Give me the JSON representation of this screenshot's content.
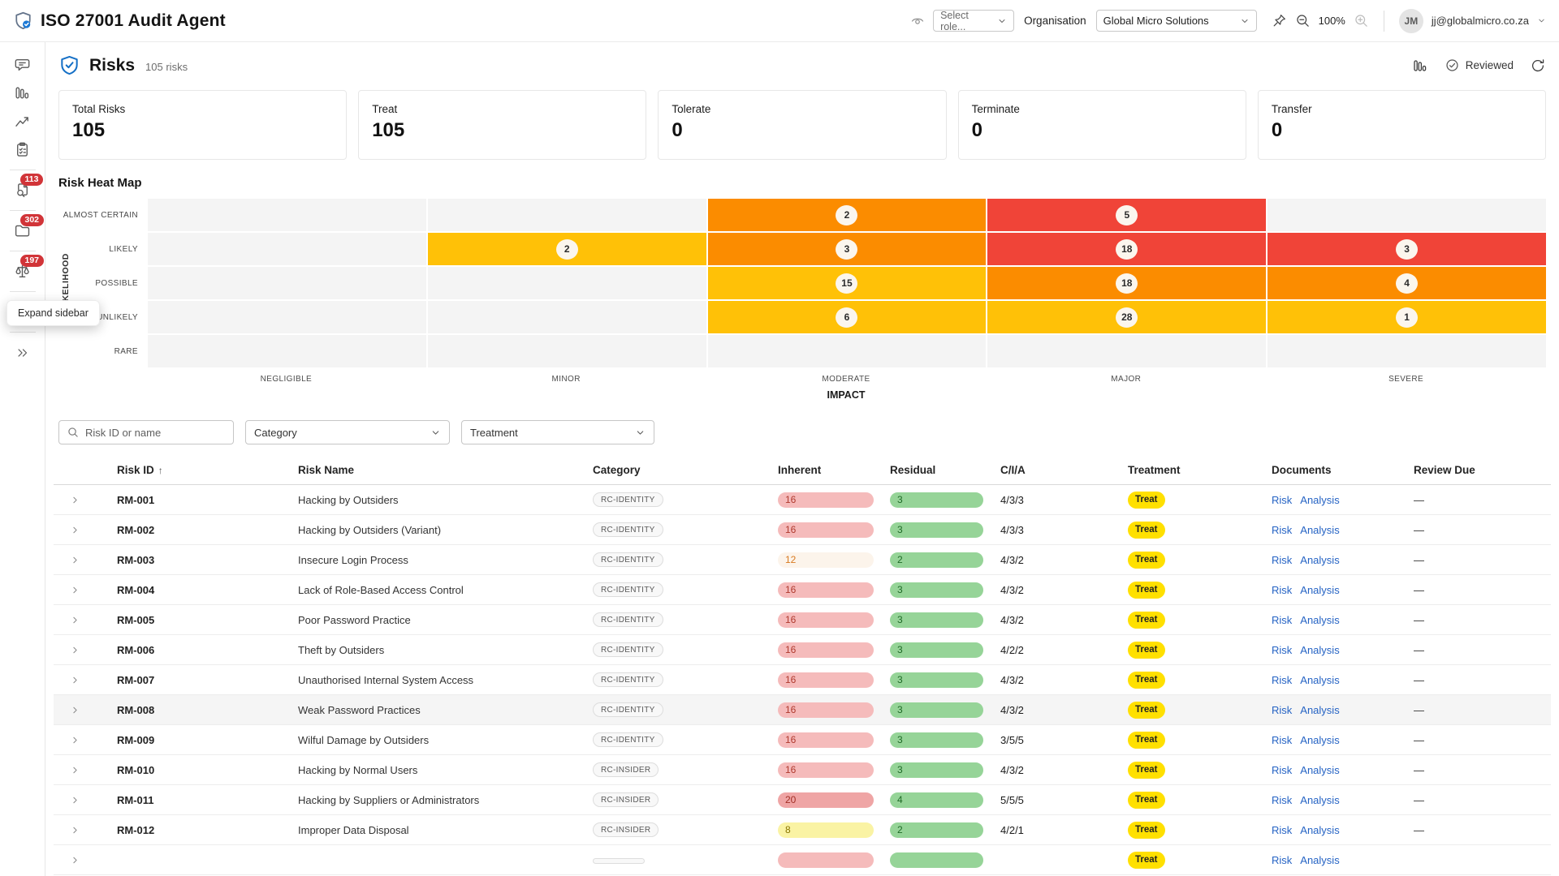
{
  "header": {
    "app_title": "ISO 27001 Audit Agent",
    "role_placeholder": "Select role...",
    "organisation_label": "Organisation",
    "organisation_value": "Global Micro Solutions",
    "zoom_level": "100%",
    "user_initials": "JM",
    "user_email": "jj@globalmicro.co.za"
  },
  "sidebar": {
    "tooltip": "Expand sidebar",
    "items": [
      {
        "name": "chat",
        "icon": "chat",
        "badge": null,
        "divider_after": false
      },
      {
        "name": "bar-chart",
        "icon": "bars",
        "badge": null,
        "divider_after": false
      },
      {
        "name": "trend",
        "icon": "trend",
        "badge": null,
        "divider_after": false
      },
      {
        "name": "checklist",
        "icon": "clipboard",
        "badge": null,
        "divider_after": true
      },
      {
        "name": "document-search",
        "icon": "docsearch",
        "badge": "113",
        "divider_after": true
      },
      {
        "name": "folder",
        "icon": "folder",
        "badge": "302",
        "divider_after": true
      },
      {
        "name": "compliance-scale",
        "icon": "scale",
        "badge": "197",
        "divider_after": true
      },
      {
        "name": "bank",
        "icon": "bank",
        "badge": null,
        "divider_after": true
      }
    ]
  },
  "page": {
    "title": "Risks",
    "subtitle": "105 risks",
    "reviewed_label": "Reviewed"
  },
  "stats": [
    {
      "label": "Total Risks",
      "value": "105"
    },
    {
      "label": "Treat",
      "value": "105"
    },
    {
      "label": "Tolerate",
      "value": "0"
    },
    {
      "label": "Terminate",
      "value": "0"
    },
    {
      "label": "Transfer",
      "value": "0"
    }
  ],
  "heatmap": {
    "title": "Risk Heat Map",
    "y_axis": "LIKELIHOOD",
    "x_axis": "IMPACT",
    "rows": [
      "ALMOST CERTAIN",
      "LIKELY",
      "POSSIBLE",
      "UNLIKELY",
      "RARE"
    ],
    "cols": [
      "NEGLIGIBLE",
      "MINOR",
      "MODERATE",
      "MAJOR",
      "SEVERE"
    ],
    "colors": {
      "amber": "#FFC107",
      "orange": "#FB8C00",
      "red": "#F04438",
      "empty": "#F4F4F4"
    },
    "cells": [
      {
        "row": 0,
        "col": 2,
        "value": "2",
        "color": "orange"
      },
      {
        "row": 0,
        "col": 3,
        "value": "5",
        "color": "red"
      },
      {
        "row": 1,
        "col": 1,
        "value": "2",
        "color": "amber"
      },
      {
        "row": 1,
        "col": 2,
        "value": "3",
        "color": "orange"
      },
      {
        "row": 1,
        "col": 3,
        "value": "18",
        "color": "red"
      },
      {
        "row": 1,
        "col": 4,
        "value": "3",
        "color": "red"
      },
      {
        "row": 2,
        "col": 2,
        "value": "15",
        "color": "amber"
      },
      {
        "row": 2,
        "col": 3,
        "value": "18",
        "color": "orange"
      },
      {
        "row": 2,
        "col": 4,
        "value": "4",
        "color": "orange"
      },
      {
        "row": 3,
        "col": 2,
        "value": "6",
        "color": "amber"
      },
      {
        "row": 3,
        "col": 3,
        "value": "28",
        "color": "amber"
      },
      {
        "row": 3,
        "col": 4,
        "value": "1",
        "color": "amber"
      }
    ]
  },
  "filters": {
    "search_placeholder": "Risk ID or name",
    "category": "Category",
    "treatment": "Treatment"
  },
  "table": {
    "columns": [
      "Risk ID",
      "Risk Name",
      "Category",
      "Inherent",
      "Residual",
      "C/I/A",
      "Treatment",
      "Documents",
      "Review Due"
    ],
    "sort_indicator": "↑",
    "doc_links": [
      "Risk",
      "Analysis"
    ],
    "bar_colors": {
      "pink": {
        "bg": "#F5BBBB",
        "fg": "#B03A2E"
      },
      "rose": {
        "bg": "#EFA5A5",
        "fg": "#A22F25"
      },
      "cream": {
        "bg": "#FCF4EB",
        "fg": "#D97A21"
      },
      "yellow": {
        "bg": "#FAF3A4",
        "fg": "#8A7500"
      },
      "green": {
        "bg": "#96D498",
        "fg": "#1F6B27"
      }
    },
    "rows": [
      {
        "id": "RM-001",
        "name": "Hacking by Outsiders",
        "category": "RC-IDENTITY",
        "inherent": "16",
        "inherent_color": "pink",
        "residual": "3",
        "cia": "4/3/3",
        "treatment": "Treat",
        "review_due": "—",
        "highlight": false,
        "partial": false
      },
      {
        "id": "RM-002",
        "name": "Hacking by Outsiders (Variant)",
        "category": "RC-IDENTITY",
        "inherent": "16",
        "inherent_color": "pink",
        "residual": "3",
        "cia": "4/3/3",
        "treatment": "Treat",
        "review_due": "—",
        "highlight": false,
        "partial": false
      },
      {
        "id": "RM-003",
        "name": "Insecure Login Process",
        "category": "RC-IDENTITY",
        "inherent": "12",
        "inherent_color": "cream",
        "residual": "2",
        "cia": "4/3/2",
        "treatment": "Treat",
        "review_due": "—",
        "highlight": false,
        "partial": false
      },
      {
        "id": "RM-004",
        "name": "Lack of Role-Based Access Control",
        "category": "RC-IDENTITY",
        "inherent": "16",
        "inherent_color": "pink",
        "residual": "3",
        "cia": "4/3/2",
        "treatment": "Treat",
        "review_due": "—",
        "highlight": false,
        "partial": false
      },
      {
        "id": "RM-005",
        "name": "Poor Password Practice",
        "category": "RC-IDENTITY",
        "inherent": "16",
        "inherent_color": "pink",
        "residual": "3",
        "cia": "4/3/2",
        "treatment": "Treat",
        "review_due": "—",
        "highlight": false,
        "partial": false
      },
      {
        "id": "RM-006",
        "name": "Theft by Outsiders",
        "category": "RC-IDENTITY",
        "inherent": "16",
        "inherent_color": "pink",
        "residual": "3",
        "cia": "4/2/2",
        "treatment": "Treat",
        "review_due": "—",
        "highlight": false,
        "partial": false
      },
      {
        "id": "RM-007",
        "name": "Unauthorised Internal System Access",
        "category": "RC-IDENTITY",
        "inherent": "16",
        "inherent_color": "pink",
        "residual": "3",
        "cia": "4/3/2",
        "treatment": "Treat",
        "review_due": "—",
        "highlight": false,
        "partial": false
      },
      {
        "id": "RM-008",
        "name": "Weak Password Practices",
        "category": "RC-IDENTITY",
        "inherent": "16",
        "inherent_color": "pink",
        "residual": "3",
        "cia": "4/3/2",
        "treatment": "Treat",
        "review_due": "—",
        "highlight": true,
        "partial": false
      },
      {
        "id": "RM-009",
        "name": "Wilful Damage by Outsiders",
        "category": "RC-IDENTITY",
        "inherent": "16",
        "inherent_color": "pink",
        "residual": "3",
        "cia": "3/5/5",
        "treatment": "Treat",
        "review_due": "—",
        "highlight": false,
        "partial": false
      },
      {
        "id": "RM-010",
        "name": "Hacking by Normal Users",
        "category": "RC-INSIDER",
        "inherent": "16",
        "inherent_color": "pink",
        "residual": "3",
        "cia": "4/3/2",
        "treatment": "Treat",
        "review_due": "—",
        "highlight": false,
        "partial": false
      },
      {
        "id": "RM-011",
        "name": "Hacking by Suppliers or Administrators",
        "category": "RC-INSIDER",
        "inherent": "20",
        "inherent_color": "rose",
        "residual": "4",
        "cia": "5/5/5",
        "treatment": "Treat",
        "review_due": "—",
        "highlight": false,
        "partial": false
      },
      {
        "id": "RM-012",
        "name": "Improper Data Disposal",
        "category": "RC-INSIDER",
        "inherent": "8",
        "inherent_color": "yellow",
        "residual": "2",
        "cia": "4/2/1",
        "treatment": "Treat",
        "review_due": "—",
        "highlight": false,
        "partial": false
      },
      {
        "id": "",
        "name": "",
        "category": "",
        "inherent": "",
        "inherent_color": "pink",
        "residual": "",
        "cia": "",
        "treatment": "Treat",
        "review_due": "",
        "highlight": false,
        "partial": true
      }
    ]
  }
}
